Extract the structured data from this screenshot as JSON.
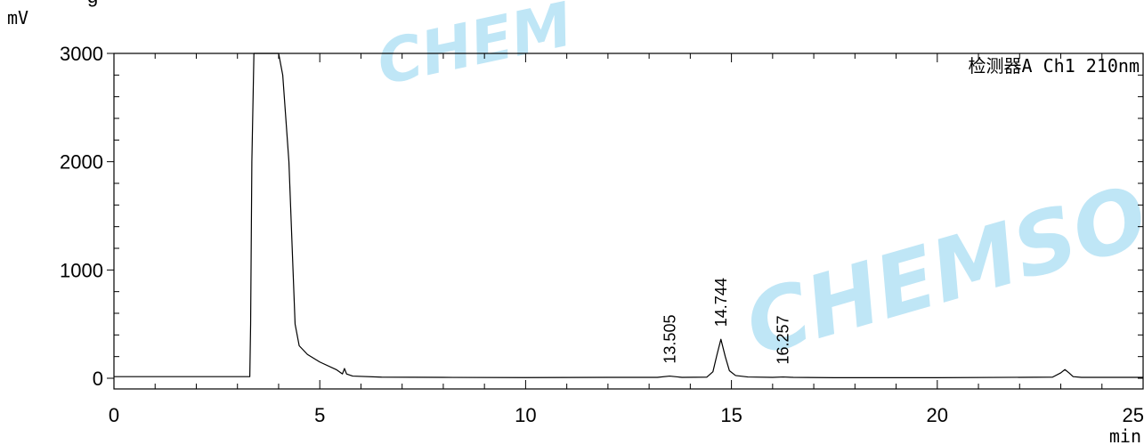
{
  "chart_data": {
    "type": "line",
    "title": "",
    "xlabel": "min",
    "ylabel": "mV",
    "xlim": [
      0,
      25
    ],
    "ylim": [
      0,
      3000
    ],
    "x_ticks": [
      "0",
      "5",
      "10",
      "15",
      "20",
      "25"
    ],
    "y_ticks": [
      "0",
      "1000",
      "2000",
      "3000"
    ],
    "detector_label": "检测器A Ch1 210nm",
    "series": [
      {
        "x": [
          0.0,
          3.0,
          3.3,
          3.32,
          3.35,
          3.4,
          4.0,
          4.1,
          4.25,
          4.35,
          4.4,
          4.5,
          4.7,
          5.0,
          5.4,
          5.55,
          5.6,
          5.65,
          5.8,
          6.5,
          8.0,
          10.0,
          12.0,
          13.2,
          13.5,
          13.8,
          14.4,
          14.55,
          14.65,
          14.744,
          14.85,
          14.95,
          15.1,
          15.4,
          16.0,
          16.257,
          16.5,
          17.5,
          20.0,
          22.8,
          23.0,
          23.1,
          23.2,
          23.3,
          23.5,
          25.0
        ],
        "y": [
          15,
          15,
          15,
          500,
          2000,
          3000,
          3000,
          2800,
          2000,
          1000,
          500,
          300,
          220,
          150,
          80,
          40,
          90,
          40,
          20,
          10,
          8,
          6,
          8,
          8,
          20,
          8,
          10,
          60,
          220,
          360,
          200,
          70,
          25,
          12,
          8,
          12,
          8,
          5,
          5,
          10,
          50,
          80,
          50,
          15,
          8,
          8
        ]
      }
    ],
    "peak_labels": [
      {
        "x": 13.505,
        "label": "13.505"
      },
      {
        "x": 14.744,
        "label": "14.744"
      },
      {
        "x": 16.257,
        "label": "16.257"
      }
    ],
    "partial_top_label": "g",
    "watermarks": [
      "CHEM",
      "CHEMSOO"
    ]
  }
}
